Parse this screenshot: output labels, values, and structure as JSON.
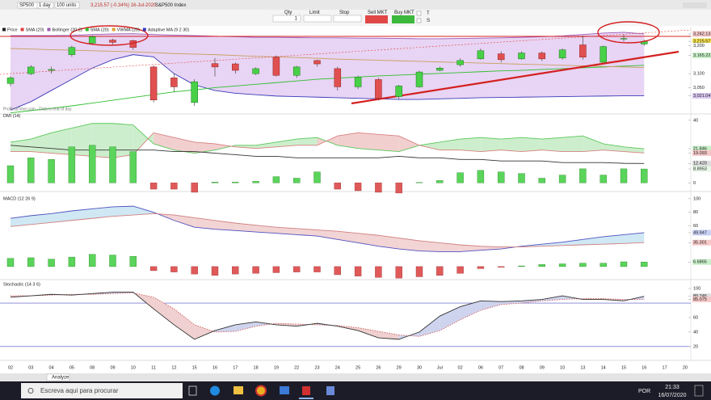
{
  "toolbar": {
    "instrument": "SP500",
    "period": "1 day",
    "units": "100 units",
    "quote": "3,215.57 (-0.34%) 16-Jul-2020",
    "name": "S&P500 Index"
  },
  "order": {
    "qty_label": "Qty",
    "qty": "1",
    "limit_label": "Limit",
    "stop_label": "Stop",
    "sell": "Sell MKT",
    "buy": "Buy MKT",
    "t_label": "T",
    "s_label": "S"
  },
  "x_labels": [
    "02",
    "03",
    "04",
    "05",
    "08",
    "09",
    "10",
    "11",
    "12",
    "15",
    "16",
    "17",
    "18",
    "19",
    "22",
    "23",
    "24",
    "25",
    "26",
    "29",
    "30",
    "Jul",
    "02",
    "06",
    "07",
    "08",
    "09",
    "10",
    "13",
    "14",
    "15",
    "16",
    "17",
    "20"
  ],
  "price": {
    "legend": [
      {
        "name": "Price",
        "color": "#222222"
      },
      {
        "name": "SMA (20)",
        "color": "#e04040"
      },
      {
        "name": "Bollinger (20 2)",
        "color": "#9b59b6"
      },
      {
        "name": "SMA (20)",
        "color": "#2fbf2f"
      },
      {
        "name": "VWMA (20)",
        "color": "#e0a030"
      },
      {
        "name": "Adaptive MA (9 2 30)",
        "color": "#3b3bb8"
      }
    ],
    "watermark": "ProRealTime.com - Data is end of day",
    "ylim": [
      2959,
      3268
    ],
    "yticks": [
      {
        "value": 3242.13,
        "label": "3,242.13",
        "bg": "#f6c8c8"
      },
      {
        "value": 3215.57,
        "label": "3,215.57",
        "bg": "#f4e04a"
      },
      {
        "value": 3200,
        "label": "3,200",
        "bg": "#ffffff"
      },
      {
        "value": 3165.22,
        "label": "3,165.22",
        "bg": "#c8f0c8"
      },
      {
        "value": 3100,
        "label": "3,100",
        "bg": "#ffffff"
      },
      {
        "value": 3050,
        "label": "3,050",
        "bg": "#ffffff"
      },
      {
        "value": 3021.04,
        "label": "3,021.04",
        "bg": "#d8c8f0"
      }
    ],
    "open": [
      3065,
      3100,
      3112,
      3168,
      3209,
      3220,
      3218,
      3124,
      3085,
      2997,
      3136,
      3135,
      3100,
      3159,
      3094,
      3147,
      3118,
      3053,
      3079,
      3018,
      3053,
      3112,
      3132,
      3153,
      3171,
      3153,
      3174,
      3156,
      3203,
      3141,
      3224,
      3206
    ],
    "high": [
      3092,
      3130,
      3125,
      3200,
      3237,
      3225,
      3222,
      3130,
      3100,
      3080,
      3156,
      3140,
      3123,
      3165,
      3128,
      3150,
      3125,
      3093,
      3085,
      3060,
      3111,
      3125,
      3155,
      3190,
      3180,
      3180,
      3180,
      3190,
      3236,
      3200,
      3240,
      3222
    ],
    "low": [
      3055,
      3095,
      3100,
      3160,
      3205,
      3205,
      3185,
      2997,
      3035,
      2985,
      3090,
      3100,
      3095,
      3090,
      3085,
      3125,
      3040,
      3045,
      3005,
      3010,
      3050,
      3108,
      3125,
      3150,
      3140,
      3150,
      3145,
      3150,
      3150,
      3140,
      3215,
      3200
    ],
    "close": [
      3085,
      3124,
      3115,
      3194,
      3232,
      3212,
      3194,
      3006,
      3053,
      3071,
      3124,
      3112,
      3118,
      3094,
      3124,
      3135,
      3053,
      3088,
      3012,
      3056,
      3106,
      3120,
      3147,
      3182,
      3150,
      3174,
      3153,
      3185,
      3159,
      3197,
      3226,
      3215.57
    ],
    "upper": [
      3236,
      3236,
      3236,
      3237,
      3240,
      3242,
      3243,
      3240,
      3238,
      3236,
      3234,
      3232,
      3230,
      3230,
      3229,
      3228,
      3228,
      3227,
      3227,
      3226,
      3225,
      3225,
      3226,
      3227,
      3228,
      3230,
      3232,
      3235,
      3240,
      3245,
      3248,
      3242.13
    ],
    "lower": [
      2970,
      3000,
      3040,
      3080,
      3120,
      3150,
      3168,
      3160,
      3100,
      3060,
      3040,
      3030,
      3025,
      3020,
      3018,
      3016,
      3014,
      3012,
      3010,
      3008,
      3008,
      3010,
      3012,
      3014,
      3015,
      3016,
      3017,
      3018,
      3019,
      3020,
      3021,
      3021.04
    ],
    "sma": [
      2960,
      2968,
      2976,
      2985,
      2995,
      3005,
      3015,
      3025,
      3035,
      3042,
      3050,
      3056,
      3062,
      3068,
      3074,
      3080,
      3084,
      3088,
      3092,
      3095,
      3098,
      3101,
      3104,
      3107,
      3110,
      3112,
      3115,
      3118,
      3121,
      3124,
      3127,
      3130
    ],
    "vwma": [
      3190,
      3188,
      3186,
      3184,
      3182,
      3180,
      3178,
      3175,
      3172,
      3170,
      3168,
      3165,
      3162,
      3160,
      3158,
      3155,
      3152,
      3150,
      3148,
      3146,
      3144,
      3142,
      3140,
      3138,
      3136,
      3134,
      3132,
      3130,
      3128,
      3126,
      3124,
      3122
    ]
  },
  "dmi": {
    "title": "DMI (14)",
    "ylim": [
      -5,
      42
    ],
    "yticks": [
      {
        "value": 40,
        "label": "40",
        "bg": "#ffffff"
      },
      {
        "value": 21.846,
        "label": "21.846",
        "bg": "#c8f0c8"
      },
      {
        "value": 19.093,
        "label": "19.093",
        "bg": "#f6c8c8"
      },
      {
        "value": 12.42,
        "label": "12.420",
        "bg": "#dddddd"
      },
      {
        "value": 8.8953,
        "label": "8.8953",
        "bg": "#e8f8e8"
      },
      {
        "value": 0,
        "label": "0",
        "bg": "#ffffff"
      }
    ],
    "plus_di": [
      26,
      28,
      32,
      35,
      38,
      38,
      37,
      25,
      21,
      19,
      21,
      24,
      24,
      26,
      28,
      29,
      24,
      22,
      21,
      20,
      24,
      26,
      28,
      29,
      28,
      29,
      28,
      29,
      30,
      25,
      23,
      21.846
    ],
    "minus_di": [
      20,
      20,
      19,
      18,
      17,
      16,
      18,
      32,
      29,
      26,
      25,
      23,
      22,
      23,
      24,
      24,
      30,
      32,
      31,
      30,
      24,
      21,
      21,
      20,
      21,
      20,
      21,
      20,
      20,
      21,
      20,
      19.093
    ],
    "adx": [
      24,
      23,
      22,
      21,
      21,
      21,
      21,
      21,
      20,
      20,
      19,
      18,
      17,
      17,
      16,
      16,
      16,
      16,
      16,
      17,
      16,
      16,
      15,
      15,
      14,
      14,
      14,
      13,
      13,
      13,
      12.5,
      12.42
    ],
    "hist": [
      11,
      16,
      15,
      23,
      24,
      23,
      20,
      -4,
      -4,
      -6,
      0.5,
      0.5,
      1,
      4,
      3,
      7,
      -4,
      -5,
      -6,
      -6.5,
      0.3,
      1.5,
      6.5,
      8,
      7,
      6,
      3,
      5,
      9,
      5,
      9,
      8.8953
    ]
  },
  "macd": {
    "title": "MACD (12 26 9)",
    "ylim": [
      -18,
      107
    ],
    "yticks": [
      {
        "value": 100,
        "label": "100",
        "bg": "#ffffff"
      },
      {
        "value": 80,
        "label": "80",
        "bg": "#ffffff"
      },
      {
        "value": 60,
        "label": "60",
        "bg": "#ffffff"
      },
      {
        "value": 49.947,
        "label": "49.947",
        "bg": "#c8d0f4"
      },
      {
        "value": 35.301,
        "label": "35.301",
        "bg": "#f6c8c8"
      },
      {
        "value": 6.6865,
        "label": "6.6865",
        "bg": "#c8f0c8"
      }
    ],
    "macd": [
      71,
      75,
      78,
      82,
      85,
      88,
      89,
      80,
      68,
      58,
      55,
      53,
      51,
      49,
      47,
      45,
      40,
      35,
      30,
      26,
      23,
      22,
      22,
      24,
      26,
      30,
      33,
      36,
      40,
      44,
      47,
      49.947
    ],
    "signal": [
      59,
      62,
      65,
      68,
      71,
      74,
      76,
      78,
      76,
      72,
      68,
      64,
      61,
      58,
      56,
      54,
      52,
      49,
      46,
      42,
      38,
      35,
      32,
      30,
      29,
      29,
      30,
      31,
      32,
      33,
      34,
      35.301
    ],
    "hist": [
      12,
      13,
      11,
      14,
      18,
      17,
      15,
      -6,
      -8,
      -11,
      -13,
      -11,
      -10,
      -9,
      -8,
      -8,
      -12,
      -14,
      -16,
      -17,
      -15,
      -13,
      -10,
      -3,
      -1,
      1,
      3,
      4,
      5,
      5,
      7,
      6.6865
    ]
  },
  "stoch": {
    "title": "Stochastic (14 3 6)",
    "ylim": [
      2,
      109
    ],
    "yticks": [
      {
        "value": 100,
        "label": "100",
        "bg": "#ffffff"
      },
      {
        "value": 89.246,
        "label": "89.246",
        "bg": "#dddddd"
      },
      {
        "value": 85.075,
        "label": "85.075",
        "bg": "#f6c8c8"
      },
      {
        "value": 60,
        "label": "60",
        "bg": "#ffffff"
      },
      {
        "value": 40,
        "label": "40",
        "bg": "#ffffff"
      },
      {
        "value": 20,
        "label": "20",
        "bg": "#ffffff"
      }
    ],
    "levels": [
      80,
      20
    ],
    "k": [
      88,
      90,
      92,
      91,
      93,
      95,
      95,
      72,
      50,
      30,
      42,
      50,
      54,
      50,
      48,
      52,
      48,
      42,
      32,
      30,
      40,
      62,
      75,
      83,
      82,
      83,
      85,
      90,
      85,
      85,
      83,
      89.246
    ],
    "d": [
      90,
      90,
      91,
      92,
      92,
      93,
      94,
      88,
      72,
      50,
      40,
      41,
      48,
      52,
      51,
      50,
      49,
      46,
      41,
      36,
      34,
      42,
      57,
      70,
      78,
      80,
      83,
      85,
      86,
      86,
      85,
      85.075
    ]
  },
  "bottom_tab": "Analyze",
  "taskbar": {
    "search": "Escreva aqui para procurar",
    "lang": "POR",
    "time": "21:33",
    "date": "16/07/2020"
  }
}
